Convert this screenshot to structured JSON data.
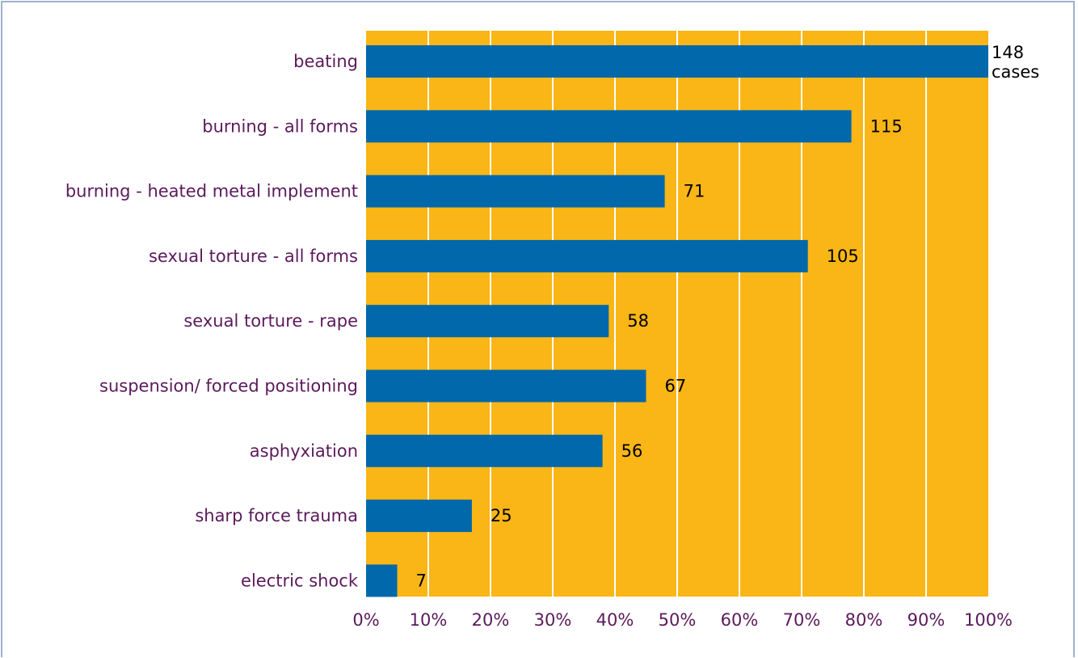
{
  "chart_data": {
    "type": "bar",
    "orientation": "horizontal",
    "categories": [
      "beating",
      "burning - all forms",
      "burning - heated metal implement",
      "sexual torture - all forms",
      "sexual torture - rape",
      "suspension/ forced positioning",
      "asphyxiation",
      "sharp force trauma",
      "electric shock"
    ],
    "values": [
      100,
      78,
      48,
      71,
      39,
      45,
      38,
      17,
      5
    ],
    "data_labels": [
      "148",
      "115",
      "71",
      "105",
      "58",
      "67",
      "56",
      "25",
      "7"
    ],
    "first_label_suffix": "cases",
    "xlim": [
      0,
      100
    ],
    "x_ticks": [
      "0%",
      "10%",
      "20%",
      "30%",
      "40%",
      "50%",
      "60%",
      "70%",
      "80%",
      "90%",
      "100%"
    ],
    "title": "",
    "xlabel": "",
    "ylabel": "",
    "grid": "vertical",
    "legend": "none",
    "colors": {
      "plot_background": "#f9b616",
      "bar": "#0068ab",
      "gridline": "#ffffff",
      "category_text": "#5b1a5b",
      "value_text": "#000000",
      "frame": "#9db3cf"
    }
  }
}
